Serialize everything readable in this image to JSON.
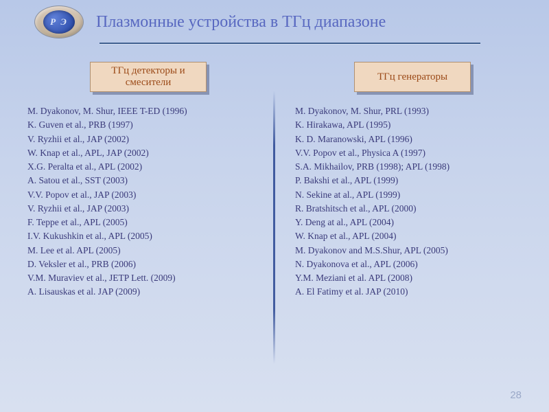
{
  "logo": {
    "text": "Р Э"
  },
  "title": "Плазмонные устройства в ТГц диапазоне",
  "page_number": "28",
  "colors": {
    "title_color": "#5868c0",
    "ref_color": "#3a3a7a",
    "label_bg": "#f0d8c0",
    "label_text": "#9b4a18"
  },
  "left": {
    "label": "ТГц детекторы и смесители",
    "refs": [
      "M. Dyakonov, M. Shur, IEEE T-ED (1996)",
      "K. Guven et al., PRB (1997)",
      "V. Ryzhii et al., JAP (2002)",
      "W. Knap et al., APL, JAP (2002)",
      "X.G. Peralta et al., APL (2002)",
      "A. Satou et al., SST (2003)",
      "V.V. Popov et al., JAP (2003)",
      "V. Ryzhii et al., JAP (2003)",
      "F. Teppe et al., APL (2005)",
      "I.V. Kukushkin et al., APL (2005)",
      "M. Lee et al. APL (2005)",
      "D. Veksler et al., PRB (2006)",
      "V.M. Muraviev et al., JETP Lett. (2009)",
      "A. Lisauskas et al. JAP (2009)"
    ]
  },
  "right": {
    "label": "ТГц генераторы",
    "refs": [
      "M. Dyakonov, M. Shur, PRL (1993)",
      "K. Hirakawa, APL (1995)",
      "K. D. Maranowski, APL (1996)",
      "V.V. Popov et al., Physica A (1997)",
      "S.A. Mikhailov, PRB (1998); APL (1998)",
      "P. Bakshi et al., APL (1999)",
      "N. Sekine at al., APL (1999)",
      "R. Bratshitsch et al., APL (2000)",
      "Y. Deng at al., APL (2004)",
      "W. Knap et al., APL (2004)",
      "M. Dyakonov and M.S.Shur, APL (2005)",
      "N. Dyakonova et al., APL (2006)",
      "Y.M. Meziani et al. APL (2008)",
      "A. El Fatimy et al. JAP (2010)"
    ]
  }
}
